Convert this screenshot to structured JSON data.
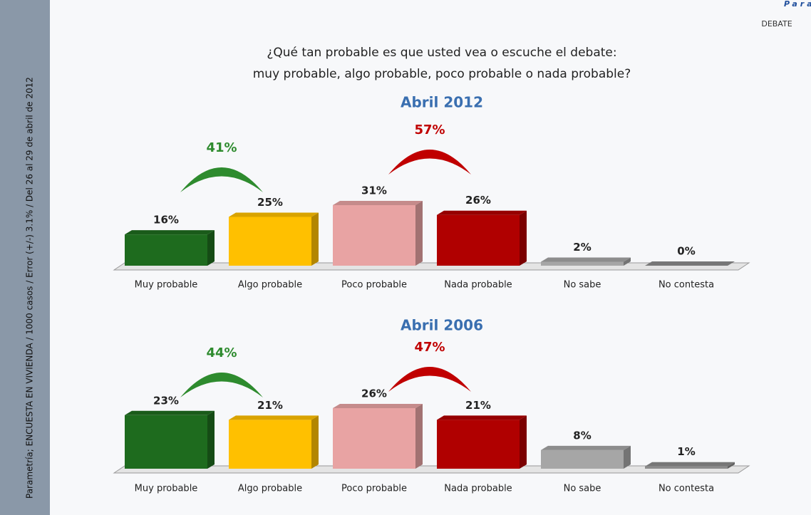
{
  "header": {
    "brand": "Parame",
    "section": "DEBATE",
    "title_lines": [
      "¿Qué tan probable es que usted vea o escuche el debate:",
      "muy probable, algo probable, poco probable o nada probable?"
    ],
    "sidebar": "Parametría; ENCUESTA EN VIVIENDA / 1000 casos / Error (+/-) 3.1% / Del 26 al 29 de abril de 2012"
  },
  "chart_data": [
    {
      "type": "bar",
      "title": "Abril 2012",
      "categories": [
        "Muy probable",
        "Algo probable",
        "Poco probable",
        "Nada probable",
        "No sabe",
        "No contesta"
      ],
      "values": [
        16,
        25,
        31,
        26,
        2,
        0
      ],
      "value_labels": [
        "16%",
        "25%",
        "31%",
        "26%",
        "2%",
        "0%"
      ],
      "colors": [
        "#1e6b1e",
        "#ffc000",
        "#e8a3a3",
        "#b00000",
        "#a6a6a6",
        "#8c8c8c"
      ],
      "annotations": [
        {
          "text": "41%",
          "color": "#2e8b2e"
        },
        {
          "text": "57%",
          "color": "#c00000"
        }
      ]
    },
    {
      "type": "bar",
      "title": "Abril 2006",
      "categories": [
        "Muy probable",
        "Algo probable",
        "Poco probable",
        "Nada probable",
        "No sabe",
        "No contesta"
      ],
      "values": [
        23,
        21,
        26,
        21,
        8,
        1
      ],
      "value_labels": [
        "23%",
        "21%",
        "26%",
        "21%",
        "8%",
        "1%"
      ],
      "colors": [
        "#1e6b1e",
        "#ffc000",
        "#e8a3a3",
        "#b00000",
        "#a6a6a6",
        "#8c8c8c"
      ],
      "annotations": [
        {
          "text": "44%",
          "color": "#2e8b2e"
        },
        {
          "text": "47%",
          "color": "#c00000"
        }
      ]
    }
  ]
}
